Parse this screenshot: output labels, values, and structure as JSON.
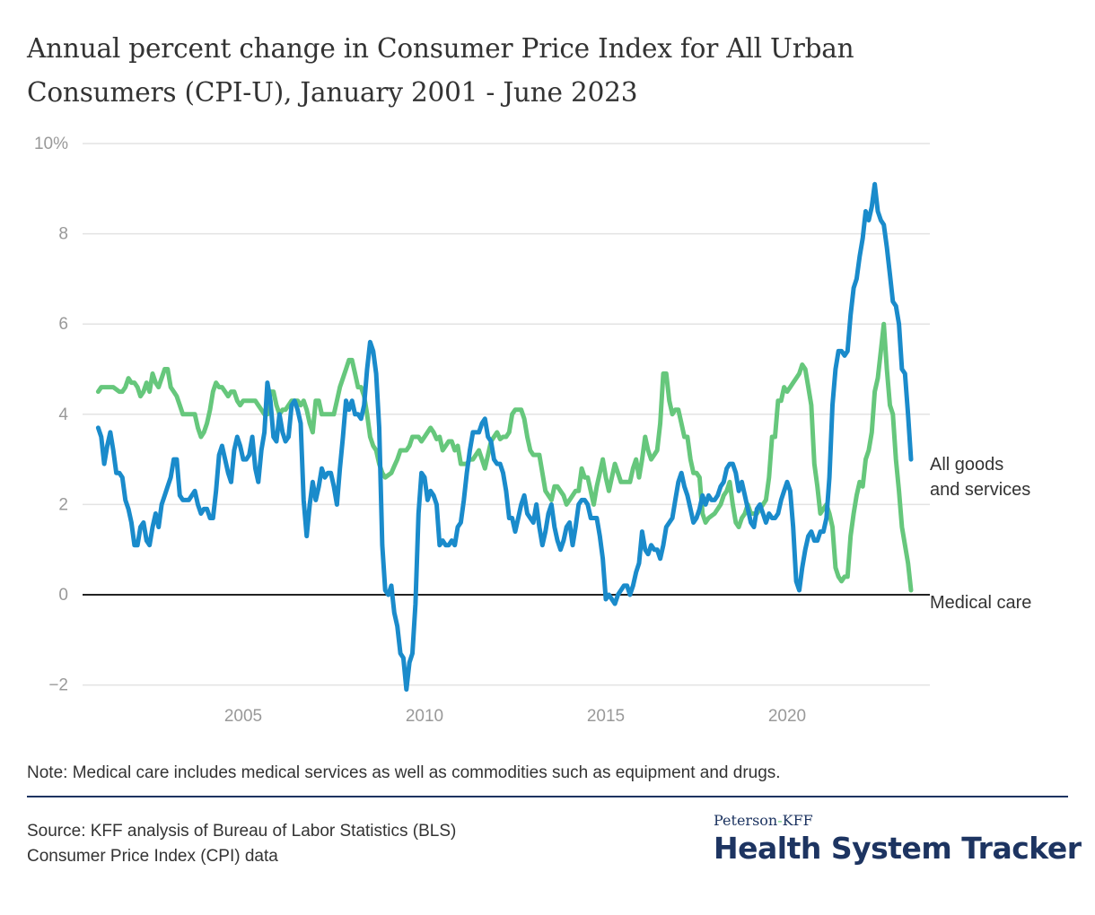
{
  "title": {
    "line1": "Annual percent change in Consumer Price Index for All Urban",
    "line2": "Consumers (CPI-U), January 2001 - June 2023"
  },
  "note": "Note: Medical care includes medical services as well as commodities such as equipment and drugs.",
  "source": {
    "line1": "Source: KFF analysis of Bureau of Labor Statistics (BLS)",
    "line2": "Consumer Price Index (CPI) data"
  },
  "logo": {
    "top_left": "Peterson",
    "top_dash": "-",
    "top_right": "KFF",
    "main": "Health System Tracker"
  },
  "chart_data": {
    "type": "line",
    "title": "Annual percent change in Consumer Price Index for All Urban Consumers (CPI-U), January 2001 - June 2023",
    "xlabel": "",
    "ylabel": "",
    "x_start": "2001-01",
    "x_end": "2023-06",
    "x_frequency": "monthly",
    "xlim": [
      2001,
      2023.5
    ],
    "ylim": [
      -2,
      10
    ],
    "y_ticks": [
      {
        "v": 10,
        "label": "10%"
      },
      {
        "v": 8,
        "label": "8"
      },
      {
        "v": 6,
        "label": "6"
      },
      {
        "v": 4,
        "label": "4"
      },
      {
        "v": 2,
        "label": "2"
      },
      {
        "v": 0,
        "label": "0"
      },
      {
        "v": -2,
        "label": "−2"
      }
    ],
    "x_ticks": [
      {
        "v": 2005,
        "label": "2005"
      },
      {
        "v": 2010,
        "label": "2010"
      },
      {
        "v": 2015,
        "label": "2015"
      },
      {
        "v": 2020,
        "label": "2020"
      }
    ],
    "grid": true,
    "legend": "direct labels at right end of lines",
    "series": [
      {
        "name": "All goods and services",
        "label_lines": [
          "All goods",
          "and services"
        ],
        "color": "#1a8bcb",
        "values": [
          3.7,
          3.5,
          2.9,
          3.3,
          3.6,
          3.2,
          2.7,
          2.7,
          2.6,
          2.1,
          1.9,
          1.6,
          1.1,
          1.1,
          1.5,
          1.6,
          1.2,
          1.1,
          1.5,
          1.8,
          1.5,
          2.0,
          2.2,
          2.4,
          2.6,
          3.0,
          3.0,
          2.2,
          2.1,
          2.1,
          2.1,
          2.2,
          2.3,
          2.0,
          1.8,
          1.9,
          1.9,
          1.7,
          1.7,
          2.3,
          3.1,
          3.3,
          3.0,
          2.7,
          2.5,
          3.2,
          3.5,
          3.3,
          3.0,
          3.0,
          3.1,
          3.5,
          2.8,
          2.5,
          3.2,
          3.6,
          4.7,
          4.3,
          3.5,
          3.4,
          4.0,
          3.6,
          3.4,
          3.5,
          4.2,
          4.3,
          4.1,
          3.8,
          2.1,
          1.3,
          2.0,
          2.5,
          2.1,
          2.4,
          2.8,
          2.6,
          2.7,
          2.7,
          2.4,
          2.0,
          2.8,
          3.5,
          4.3,
          4.1,
          4.3,
          4.0,
          4.0,
          3.9,
          4.2,
          5.0,
          5.6,
          5.4,
          4.9,
          3.7,
          1.1,
          0.1,
          0.0,
          0.2,
          -0.4,
          -0.7,
          -1.3,
          -1.4,
          -2.1,
          -1.5,
          -1.3,
          -0.2,
          1.8,
          2.7,
          2.6,
          2.1,
          2.3,
          2.2,
          2.0,
          1.1,
          1.2,
          1.1,
          1.1,
          1.2,
          1.1,
          1.5,
          1.6,
          2.1,
          2.7,
          3.2,
          3.6,
          3.6,
          3.6,
          3.8,
          3.9,
          3.5,
          3.4,
          3.0,
          2.9,
          2.9,
          2.7,
          2.3,
          1.7,
          1.7,
          1.4,
          1.7,
          2.0,
          2.2,
          1.8,
          1.7,
          1.6,
          2.0,
          1.5,
          1.1,
          1.4,
          1.8,
          2.0,
          1.5,
          1.2,
          1.0,
          1.2,
          1.5,
          1.6,
          1.1,
          1.5,
          2.0,
          2.1,
          2.1,
          2.0,
          1.7,
          1.7,
          1.7,
          1.3,
          0.8,
          -0.1,
          0.0,
          -0.1,
          -0.2,
          0.0,
          0.1,
          0.2,
          0.2,
          0.0,
          0.2,
          0.5,
          0.7,
          1.4,
          1.0,
          0.9,
          1.1,
          1.0,
          1.0,
          0.8,
          1.1,
          1.5,
          1.6,
          1.7,
          2.1,
          2.5,
          2.7,
          2.4,
          2.2,
          1.9,
          1.6,
          1.7,
          1.9,
          2.2,
          2.0,
          2.2,
          2.1,
          2.1,
          2.2,
          2.4,
          2.5,
          2.8,
          2.9,
          2.9,
          2.7,
          2.3,
          2.5,
          2.2,
          1.9,
          1.6,
          1.5,
          1.9,
          2.0,
          1.8,
          1.6,
          1.8,
          1.7,
          1.7,
          1.8,
          2.1,
          2.3,
          2.5,
          2.3,
          1.5,
          0.3,
          0.1,
          0.6,
          1.0,
          1.3,
          1.4,
          1.2,
          1.2,
          1.4,
          1.4,
          1.7,
          2.6,
          4.2,
          5.0,
          5.4,
          5.4,
          5.3,
          5.4,
          6.2,
          6.8,
          7.0,
          7.5,
          7.9,
          8.5,
          8.3,
          8.6,
          9.1,
          8.5,
          8.3,
          8.2,
          7.7,
          7.1,
          6.5,
          6.4,
          6.0,
          5.0,
          4.9,
          4.0,
          3.0
        ]
      },
      {
        "name": "Medical care",
        "label_lines": [
          "Medical care"
        ],
        "color": "#66c77c",
        "values": [
          4.5,
          4.6,
          4.6,
          4.6,
          4.6,
          4.6,
          4.55,
          4.5,
          4.5,
          4.6,
          4.8,
          4.7,
          4.7,
          4.6,
          4.4,
          4.5,
          4.7,
          4.5,
          4.9,
          4.7,
          4.6,
          4.8,
          5.0,
          5.0,
          4.6,
          4.5,
          4.4,
          4.2,
          4.0,
          4.0,
          4.0,
          4.0,
          4.0,
          3.7,
          3.5,
          3.6,
          3.8,
          4.1,
          4.5,
          4.7,
          4.6,
          4.6,
          4.5,
          4.4,
          4.5,
          4.5,
          4.3,
          4.2,
          4.3,
          4.3,
          4.3,
          4.3,
          4.3,
          4.2,
          4.1,
          4.0,
          4.0,
          4.5,
          4.5,
          4.2,
          4.0,
          4.1,
          4.1,
          4.2,
          4.3,
          4.3,
          4.3,
          4.2,
          4.3,
          4.1,
          3.8,
          3.6,
          4.3,
          4.3,
          4.0,
          4.0,
          4.0,
          4.0,
          4.0,
          4.3,
          4.6,
          4.8,
          5.0,
          5.2,
          5.2,
          4.9,
          4.6,
          4.6,
          4.4,
          4.0,
          3.5,
          3.3,
          3.2,
          2.9,
          2.7,
          2.6,
          2.65,
          2.7,
          2.85,
          3.0,
          3.2,
          3.2,
          3.2,
          3.3,
          3.5,
          3.5,
          3.5,
          3.4,
          3.5,
          3.6,
          3.7,
          3.6,
          3.45,
          3.5,
          3.2,
          3.3,
          3.4,
          3.4,
          3.2,
          3.3,
          2.9,
          2.9,
          2.9,
          3.0,
          3.0,
          3.1,
          3.2,
          3.0,
          2.8,
          3.1,
          3.4,
          3.5,
          3.6,
          3.45,
          3.5,
          3.5,
          3.6,
          4.0,
          4.1,
          4.1,
          4.1,
          3.9,
          3.5,
          3.2,
          3.1,
          3.1,
          3.1,
          2.7,
          2.3,
          2.2,
          2.1,
          2.4,
          2.4,
          2.3,
          2.2,
          2.0,
          2.1,
          2.2,
          2.3,
          2.3,
          2.8,
          2.6,
          2.6,
          2.3,
          2.0,
          2.4,
          2.7,
          3.0,
          2.6,
          2.3,
          2.6,
          2.9,
          2.7,
          2.5,
          2.5,
          2.5,
          2.5,
          2.8,
          3.0,
          2.6,
          3.0,
          3.5,
          3.2,
          3.0,
          3.1,
          3.2,
          3.8,
          4.9,
          4.9,
          4.3,
          4.0,
          4.1,
          4.1,
          3.8,
          3.5,
          3.5,
          3.0,
          2.7,
          2.7,
          2.6,
          1.8,
          1.6,
          1.7,
          1.75,
          1.8,
          1.9,
          2.0,
          2.2,
          2.3,
          2.5,
          2.0,
          1.6,
          1.5,
          1.7,
          1.8,
          2.0,
          1.8,
          1.8,
          1.8,
          1.9,
          2.0,
          2.1,
          2.6,
          3.5,
          3.5,
          4.3,
          4.3,
          4.6,
          4.5,
          4.6,
          4.7,
          4.8,
          4.9,
          5.1,
          5.0,
          4.6,
          4.2,
          2.9,
          2.4,
          1.8,
          1.9,
          2.0,
          1.8,
          1.5,
          0.6,
          0.4,
          0.3,
          0.4,
          0.4,
          1.3,
          1.8,
          2.2,
          2.5,
          2.4,
          3.0,
          3.2,
          3.6,
          4.5,
          4.8,
          5.4,
          6.0,
          5.0,
          4.2,
          4.0,
          3.0,
          2.3,
          1.5,
          1.1,
          0.7,
          0.1
        ]
      }
    ]
  }
}
